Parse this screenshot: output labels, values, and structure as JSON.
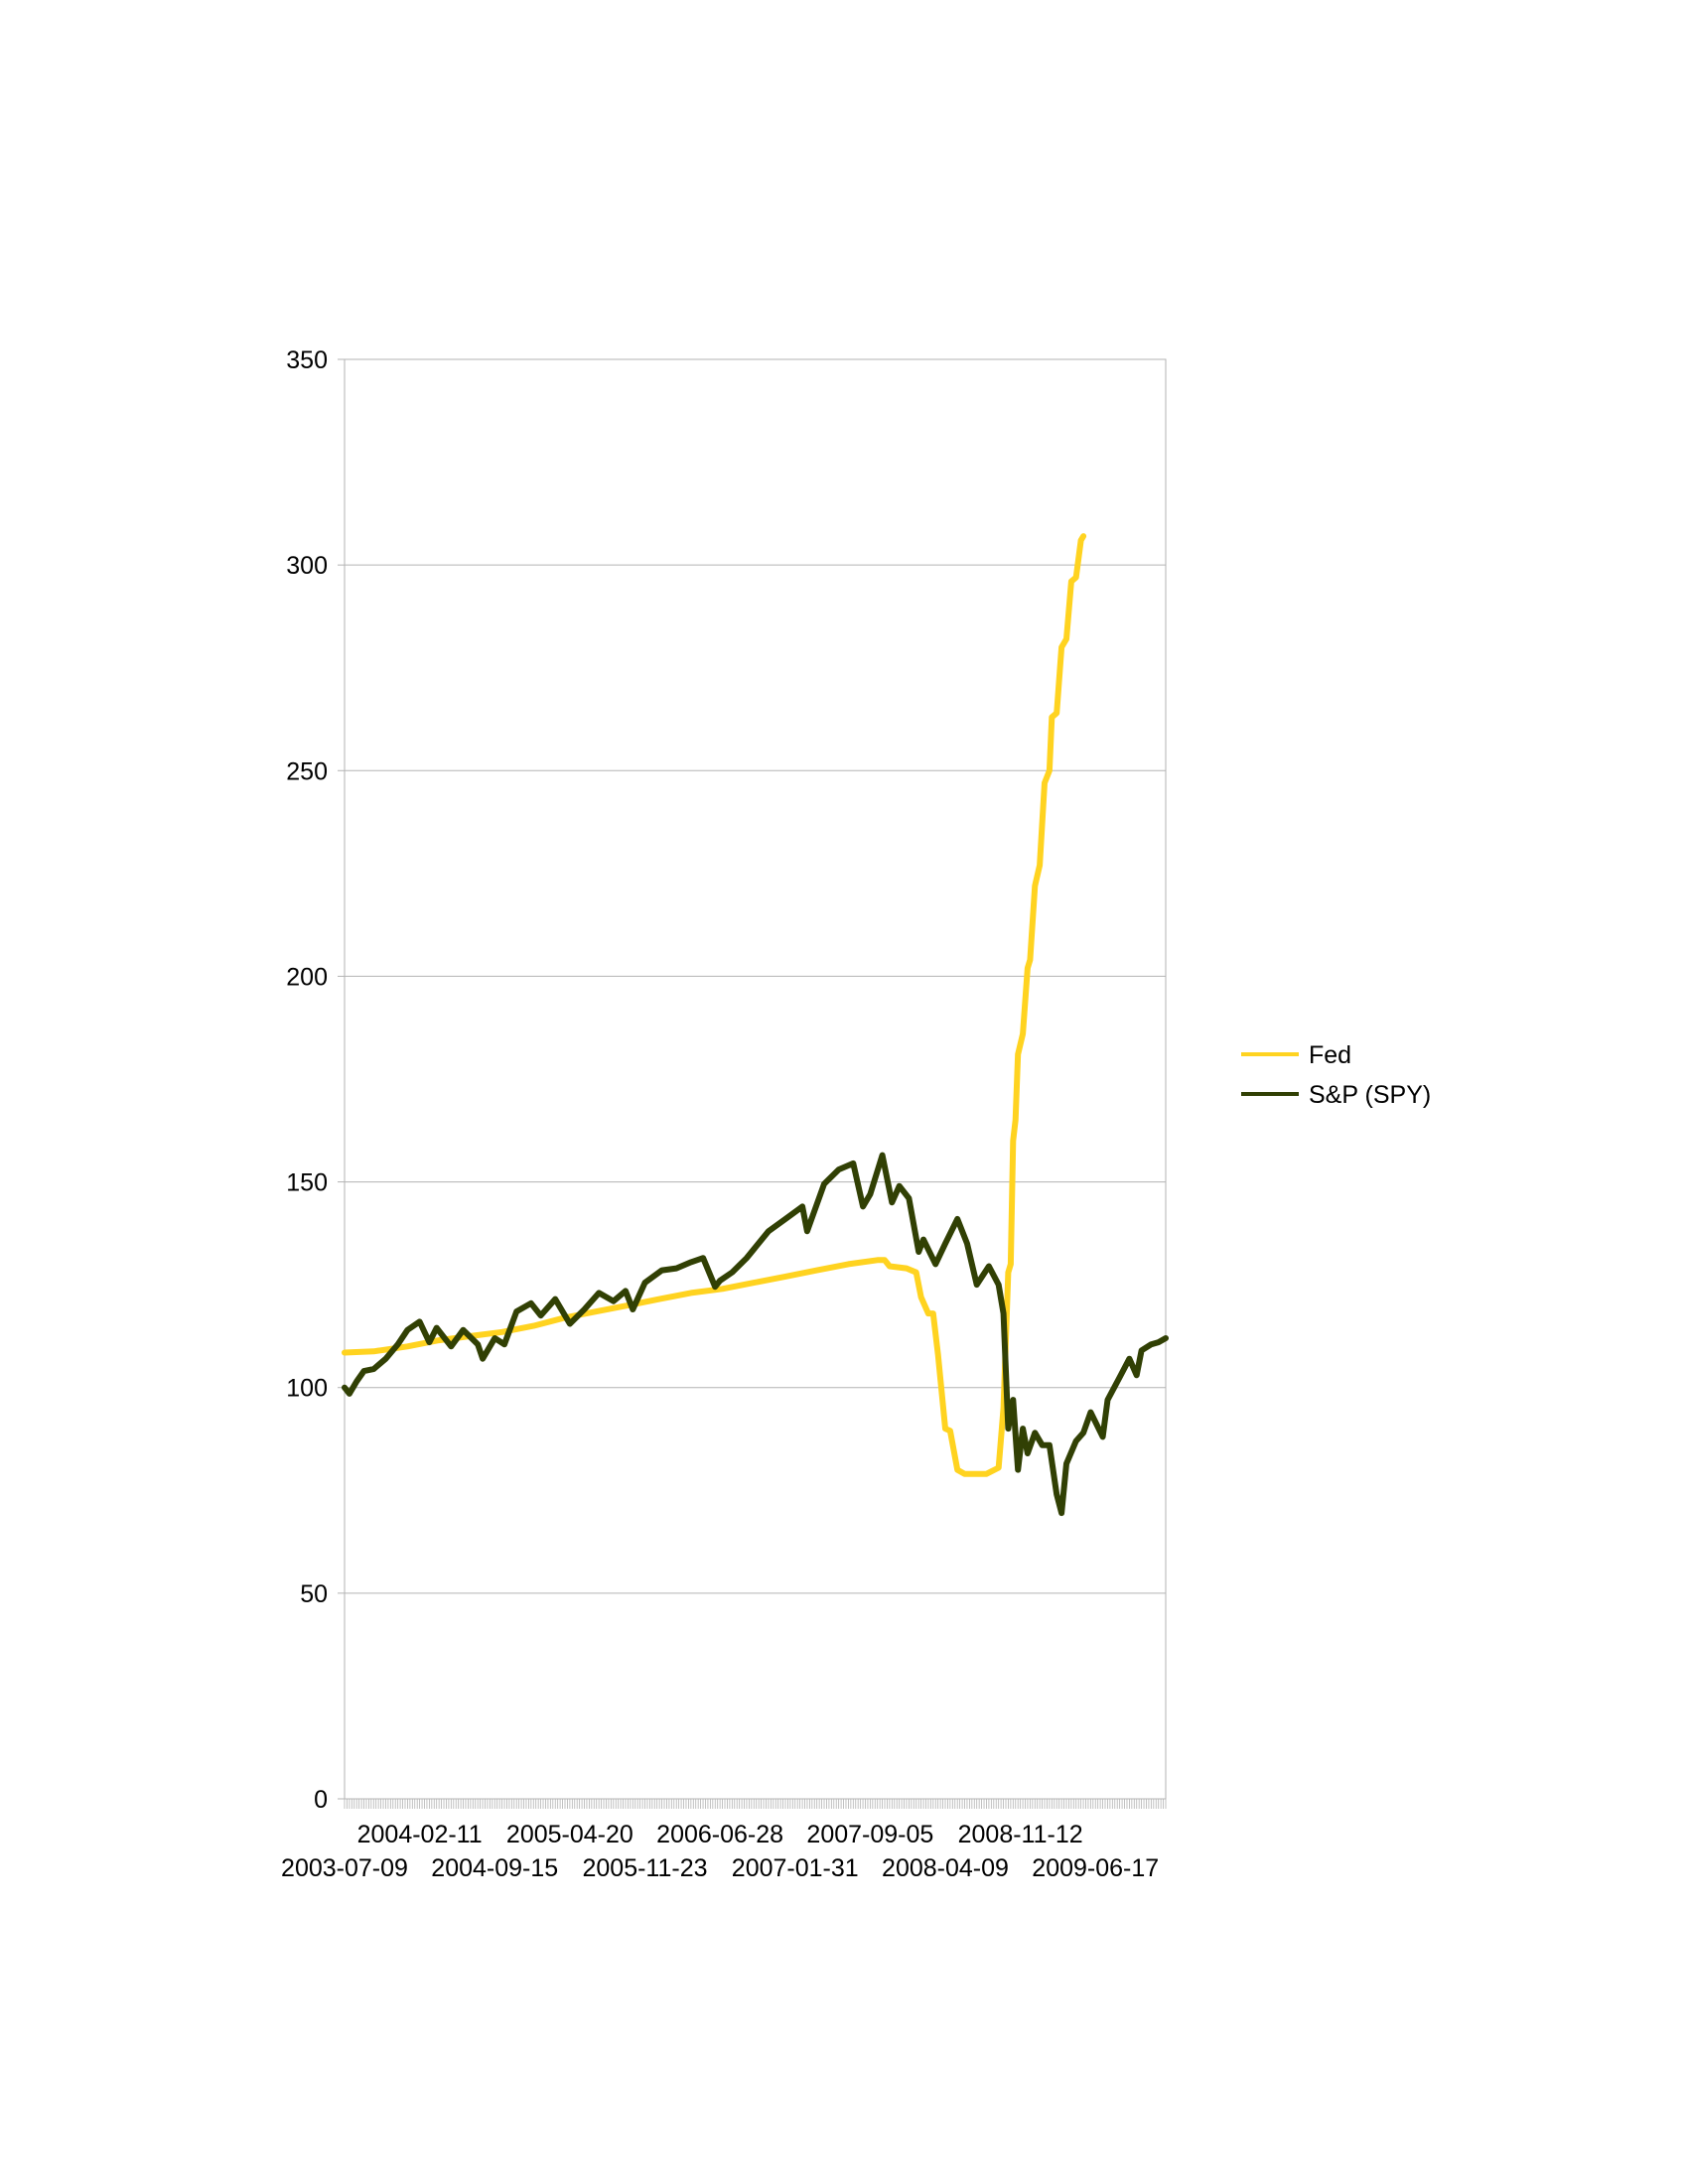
{
  "chart_data": {
    "type": "line",
    "title": "",
    "xlabel": "",
    "ylabel": "",
    "ylim": [
      0,
      350
    ],
    "yticks": [
      0,
      50,
      100,
      150,
      200,
      250,
      300,
      350
    ],
    "xlim": [
      "2003-07-09",
      "2010-01-06"
    ],
    "xtick_labels_row1": [
      "2004-02-11",
      "2005-04-20",
      "2006-06-28",
      "2007-09-05",
      "2008-11-12"
    ],
    "xtick_labels_row2": [
      "2003-07-09",
      "2004-09-15",
      "2005-11-23",
      "2007-01-31",
      "2008-04-09",
      "2009-06-17"
    ],
    "grid": true,
    "legend_position": "right",
    "series": [
      {
        "name": "Fed",
        "color": "#FFD320",
        "points": [
          [
            "2003-07-09",
            108.5
          ],
          [
            "2003-10-01",
            108.8
          ],
          [
            "2004-01-07",
            110.0
          ],
          [
            "2004-04-07",
            111.5
          ],
          [
            "2004-07-07",
            112.5
          ],
          [
            "2004-10-06",
            113.5
          ],
          [
            "2005-01-05",
            115.0
          ],
          [
            "2005-04-06",
            117.0
          ],
          [
            "2005-07-06",
            118.5
          ],
          [
            "2005-10-05",
            120.0
          ],
          [
            "2006-01-04",
            121.5
          ],
          [
            "2006-04-05",
            123.0
          ],
          [
            "2006-07-05",
            124.0
          ],
          [
            "2006-10-04",
            125.5
          ],
          [
            "2007-01-03",
            127.0
          ],
          [
            "2007-04-04",
            128.5
          ],
          [
            "2007-07-04",
            130.0
          ],
          [
            "2007-09-26",
            131.0
          ],
          [
            "2007-10-17",
            131.0
          ],
          [
            "2007-10-31",
            129.5
          ],
          [
            "2007-12-19",
            129.0
          ],
          [
            "2008-01-16",
            128.0
          ],
          [
            "2008-01-30",
            122.0
          ],
          [
            "2008-02-20",
            118.0
          ],
          [
            "2008-03-05",
            118.0
          ],
          [
            "2008-03-19",
            108.0
          ],
          [
            "2008-04-09",
            90.0
          ],
          [
            "2008-04-23",
            89.5
          ],
          [
            "2008-05-14",
            80.0
          ],
          [
            "2008-06-04",
            79.0
          ],
          [
            "2008-07-02",
            79.0
          ],
          [
            "2008-08-06",
            79.0
          ],
          [
            "2008-09-10",
            80.5
          ],
          [
            "2008-09-24",
            95.0
          ],
          [
            "2008-10-08",
            128.0
          ],
          [
            "2008-10-15",
            130.0
          ],
          [
            "2008-10-22",
            160.0
          ],
          [
            "2008-10-29",
            165.0
          ],
          [
            "2008-11-05",
            181.0
          ],
          [
            "2008-11-19",
            186.0
          ],
          [
            "2008-12-03",
            202.0
          ],
          [
            "2008-12-10",
            204.0
          ],
          [
            "2008-12-24",
            222.0
          ],
          [
            "2009-01-07",
            227.0
          ],
          [
            "2009-01-21",
            247.0
          ],
          [
            "2009-02-04",
            250.0
          ],
          [
            "2009-02-11",
            263.0
          ],
          [
            "2009-02-25",
            264.0
          ],
          [
            "2009-03-11",
            280.0
          ],
          [
            "2009-03-25",
            282.0
          ],
          [
            "2009-04-08",
            296.0
          ],
          [
            "2009-04-22",
            297.0
          ],
          [
            "2009-05-06",
            306.0
          ],
          [
            "2009-05-13",
            307.0
          ]
        ]
      },
      {
        "name": "S&P (SPY)",
        "color": "#314004",
        "points": [
          [
            "2003-07-09",
            100.0
          ],
          [
            "2003-07-23",
            98.5
          ],
          [
            "2003-08-13",
            101.5
          ],
          [
            "2003-09-03",
            104.0
          ],
          [
            "2003-10-01",
            104.5
          ],
          [
            "2003-11-05",
            107.0
          ],
          [
            "2003-12-10",
            110.5
          ],
          [
            "2004-01-07",
            114.0
          ],
          [
            "2004-02-11",
            116.0
          ],
          [
            "2004-03-10",
            111.0
          ],
          [
            "2004-03-31",
            114.5
          ],
          [
            "2004-05-12",
            110.0
          ],
          [
            "2004-06-16",
            114.0
          ],
          [
            "2004-07-28",
            110.5
          ],
          [
            "2004-08-11",
            107.0
          ],
          [
            "2004-09-15",
            112.0
          ],
          [
            "2004-10-13",
            110.5
          ],
          [
            "2004-11-17",
            118.5
          ],
          [
            "2004-12-29",
            120.5
          ],
          [
            "2005-01-26",
            117.5
          ],
          [
            "2005-03-09",
            121.5
          ],
          [
            "2005-04-20",
            115.5
          ],
          [
            "2005-06-01",
            119.0
          ],
          [
            "2005-07-13",
            123.0
          ],
          [
            "2005-08-24",
            121.0
          ],
          [
            "2005-09-28",
            123.5
          ],
          [
            "2005-10-19",
            119.0
          ],
          [
            "2005-11-23",
            125.5
          ],
          [
            "2006-01-11",
            128.5
          ],
          [
            "2006-02-22",
            129.0
          ],
          [
            "2006-04-05",
            130.5
          ],
          [
            "2006-05-10",
            131.5
          ],
          [
            "2006-06-14",
            124.5
          ],
          [
            "2006-06-28",
            126.0
          ],
          [
            "2006-08-02",
            128.0
          ],
          [
            "2006-09-13",
            131.5
          ],
          [
            "2006-11-15",
            138.0
          ],
          [
            "2007-01-03",
            141.0
          ],
          [
            "2007-02-21",
            144.0
          ],
          [
            "2007-03-07",
            138.0
          ],
          [
            "2007-04-25",
            149.5
          ],
          [
            "2007-06-06",
            153.0
          ],
          [
            "2007-07-18",
            154.5
          ],
          [
            "2007-08-15",
            144.0
          ],
          [
            "2007-09-05",
            147.0
          ],
          [
            "2007-10-10",
            156.5
          ],
          [
            "2007-11-07",
            145.0
          ],
          [
            "2007-11-28",
            149.0
          ],
          [
            "2007-12-26",
            146.0
          ],
          [
            "2008-01-23",
            133.0
          ],
          [
            "2008-02-06",
            136.0
          ],
          [
            "2008-03-12",
            130.0
          ],
          [
            "2008-04-09",
            135.0
          ],
          [
            "2008-05-14",
            141.0
          ],
          [
            "2008-06-11",
            135.0
          ],
          [
            "2008-07-09",
            125.0
          ],
          [
            "2008-08-13",
            129.5
          ],
          [
            "2008-09-10",
            125.0
          ],
          [
            "2008-09-24",
            118.0
          ],
          [
            "2008-10-08",
            90.0
          ],
          [
            "2008-10-22",
            97.0
          ],
          [
            "2008-11-05",
            80.0
          ],
          [
            "2008-11-19",
            90.0
          ],
          [
            "2008-12-03",
            84.0
          ],
          [
            "2008-12-24",
            89.0
          ],
          [
            "2009-01-14",
            86.0
          ],
          [
            "2009-02-04",
            86.0
          ],
          [
            "2009-02-25",
            74.0
          ],
          [
            "2009-03-11",
            69.5
          ],
          [
            "2009-03-25",
            81.5
          ],
          [
            "2009-04-22",
            87.0
          ],
          [
            "2009-05-13",
            89.0
          ],
          [
            "2009-06-03",
            94.0
          ],
          [
            "2009-07-08",
            88.0
          ],
          [
            "2009-07-22",
            97.0
          ],
          [
            "2009-08-26",
            102.5
          ],
          [
            "2009-09-23",
            107.0
          ],
          [
            "2009-10-14",
            103.0
          ],
          [
            "2009-10-28",
            109.0
          ],
          [
            "2009-11-25",
            110.5
          ],
          [
            "2009-12-16",
            111.0
          ],
          [
            "2010-01-06",
            112.0
          ]
        ]
      }
    ]
  }
}
